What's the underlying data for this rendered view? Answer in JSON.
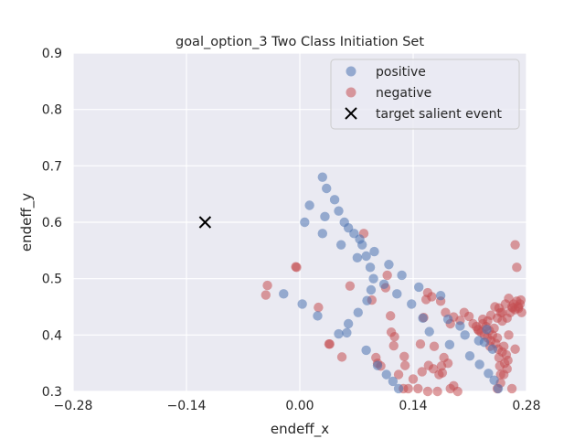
{
  "chart_data": {
    "type": "scatter",
    "title": "goal_option_3 Two Class Initiation Set",
    "xlabel": "endeff_x",
    "ylabel": "endeff_y",
    "xlim": [
      -0.28,
      0.28
    ],
    "ylim": [
      0.3,
      0.9
    ],
    "xticks": [
      -0.28,
      -0.14,
      0.0,
      0.14,
      0.28
    ],
    "xtick_labels": [
      "−0.28",
      "−0.14",
      "0.00",
      "0.14",
      "0.28"
    ],
    "yticks": [
      0.3,
      0.4,
      0.5,
      0.6,
      0.7,
      0.8,
      0.9
    ],
    "ytick_labels": [
      "0.3",
      "0.4",
      "0.5",
      "0.6",
      "0.7",
      "0.8",
      "0.9"
    ],
    "grid": true,
    "legend_position": "top-right",
    "colors": {
      "background": "#eaeaf2",
      "grid": "#ffffff",
      "positive": "#4c72b0",
      "negative": "#c44e52",
      "target": "#000000"
    },
    "series": [
      {
        "name": "positive",
        "marker": "circle",
        "points": [
          [
            -0.02,
            0.473
          ],
          [
            0.003,
            0.455
          ],
          [
            0.022,
            0.434
          ],
          [
            0.006,
            0.6
          ],
          [
            0.012,
            0.63
          ],
          [
            0.028,
            0.68
          ],
          [
            0.033,
            0.66
          ],
          [
            0.043,
            0.64
          ],
          [
            0.048,
            0.62
          ],
          [
            0.031,
            0.61
          ],
          [
            0.055,
            0.6
          ],
          [
            0.06,
            0.59
          ],
          [
            0.067,
            0.58
          ],
          [
            0.051,
            0.56
          ],
          [
            0.028,
            0.58
          ],
          [
            0.074,
            0.57
          ],
          [
            0.077,
            0.56
          ],
          [
            0.082,
            0.54
          ],
          [
            0.071,
            0.537
          ],
          [
            0.092,
            0.548
          ],
          [
            0.087,
            0.52
          ],
          [
            0.091,
            0.5
          ],
          [
            0.088,
            0.48
          ],
          [
            0.083,
            0.461
          ],
          [
            0.104,
            0.49
          ],
          [
            0.11,
            0.525
          ],
          [
            0.12,
            0.473
          ],
          [
            0.126,
            0.506
          ],
          [
            0.147,
            0.485
          ],
          [
            0.138,
            0.455
          ],
          [
            0.152,
            0.43
          ],
          [
            0.16,
            0.406
          ],
          [
            0.072,
            0.44
          ],
          [
            0.06,
            0.42
          ],
          [
            0.058,
            0.404
          ],
          [
            0.048,
            0.402
          ],
          [
            0.082,
            0.373
          ],
          [
            0.096,
            0.346
          ],
          [
            0.107,
            0.33
          ],
          [
            0.115,
            0.318
          ],
          [
            0.122,
            0.305
          ],
          [
            0.174,
            0.47
          ],
          [
            0.183,
            0.428
          ],
          [
            0.185,
            0.383
          ],
          [
            0.198,
            0.416
          ],
          [
            0.204,
            0.4
          ],
          [
            0.21,
            0.363
          ],
          [
            0.222,
            0.348
          ],
          [
            0.228,
            0.387
          ],
          [
            0.233,
            0.332
          ],
          [
            0.24,
            0.32
          ],
          [
            0.238,
            0.375
          ],
          [
            0.245,
            0.305
          ],
          [
            0.221,
            0.39
          ],
          [
            0.231,
            0.41
          ]
        ]
      },
      {
        "name": "negative",
        "marker": "circle",
        "points": [
          [
            -0.04,
            0.488
          ],
          [
            -0.042,
            0.471
          ],
          [
            -0.005,
            0.521
          ],
          [
            -0.004,
            0.52
          ],
          [
            0.023,
            0.449
          ],
          [
            0.036,
            0.384
          ],
          [
            0.037,
            0.384
          ],
          [
            0.052,
            0.361
          ],
          [
            0.062,
            0.487
          ],
          [
            0.079,
            0.58
          ],
          [
            0.089,
            0.462
          ],
          [
            0.094,
            0.36
          ],
          [
            0.1,
            0.345
          ],
          [
            0.096,
            0.35
          ],
          [
            0.108,
            0.506
          ],
          [
            0.106,
            0.484
          ],
          [
            0.112,
            0.434
          ],
          [
            0.113,
            0.405
          ],
          [
            0.117,
            0.397
          ],
          [
            0.116,
            0.381
          ],
          [
            0.129,
            0.362
          ],
          [
            0.13,
            0.346
          ],
          [
            0.122,
            0.33
          ],
          [
            0.128,
            0.305
          ],
          [
            0.134,
            0.305
          ],
          [
            0.14,
            0.322
          ],
          [
            0.146,
            0.305
          ],
          [
            0.151,
            0.335
          ],
          [
            0.149,
            0.384
          ],
          [
            0.153,
            0.431
          ],
          [
            0.156,
            0.463
          ],
          [
            0.158,
            0.475
          ],
          [
            0.163,
            0.468
          ],
          [
            0.166,
            0.38
          ],
          [
            0.159,
            0.346
          ],
          [
            0.165,
            0.34
          ],
          [
            0.172,
            0.33
          ],
          [
            0.175,
            0.345
          ],
          [
            0.178,
            0.36
          ],
          [
            0.176,
            0.333
          ],
          [
            0.183,
            0.35
          ],
          [
            0.186,
            0.305
          ],
          [
            0.19,
            0.31
          ],
          [
            0.195,
            0.3
          ],
          [
            0.17,
            0.3
          ],
          [
            0.158,
            0.3
          ],
          [
            0.174,
            0.46
          ],
          [
            0.18,
            0.44
          ],
          [
            0.186,
            0.42
          ],
          [
            0.19,
            0.432
          ],
          [
            0.198,
            0.426
          ],
          [
            0.203,
            0.44
          ],
          [
            0.209,
            0.433
          ],
          [
            0.214,
            0.42
          ],
          [
            0.218,
            0.415
          ],
          [
            0.22,
            0.41
          ],
          [
            0.224,
            0.405
          ],
          [
            0.226,
            0.42
          ],
          [
            0.228,
            0.4
          ],
          [
            0.23,
            0.415
          ],
          [
            0.232,
            0.395
          ],
          [
            0.234,
            0.408
          ],
          [
            0.236,
            0.39
          ],
          [
            0.238,
            0.4
          ],
          [
            0.24,
            0.412
          ],
          [
            0.242,
            0.385
          ],
          [
            0.244,
            0.395
          ],
          [
            0.245,
            0.375
          ],
          [
            0.246,
            0.36
          ],
          [
            0.247,
            0.345
          ],
          [
            0.248,
            0.33
          ],
          [
            0.25,
            0.37
          ],
          [
            0.252,
            0.38
          ],
          [
            0.253,
            0.35
          ],
          [
            0.255,
            0.365
          ],
          [
            0.256,
            0.34
          ],
          [
            0.257,
            0.355
          ],
          [
            0.258,
            0.4
          ],
          [
            0.26,
            0.44
          ],
          [
            0.262,
            0.45
          ],
          [
            0.264,
            0.455
          ],
          [
            0.266,
            0.445
          ],
          [
            0.268,
            0.46
          ],
          [
            0.27,
            0.45
          ],
          [
            0.272,
            0.455
          ],
          [
            0.273,
            0.462
          ],
          [
            0.254,
            0.455
          ],
          [
            0.25,
            0.44
          ],
          [
            0.246,
            0.448
          ],
          [
            0.248,
            0.44
          ],
          [
            0.266,
            0.56
          ],
          [
            0.268,
            0.52
          ],
          [
            0.258,
            0.465
          ],
          [
            0.244,
            0.43
          ],
          [
            0.236,
            0.435
          ],
          [
            0.232,
            0.425
          ],
          [
            0.226,
            0.428
          ],
          [
            0.221,
            0.408
          ],
          [
            0.252,
            0.33
          ],
          [
            0.248,
            0.315
          ],
          [
            0.244,
            0.305
          ],
          [
            0.262,
            0.305
          ],
          [
            0.266,
            0.375
          ],
          [
            0.256,
            0.43
          ],
          [
            0.241,
            0.45
          ],
          [
            0.274,
            0.44
          ],
          [
            0.27,
            0.447
          ],
          [
            0.263,
            0.448
          ],
          [
            0.25,
            0.425
          ],
          [
            0.235,
            0.38
          ]
        ]
      },
      {
        "name": "target salient event",
        "marker": "x",
        "points": [
          [
            -0.117,
            0.6
          ]
        ]
      }
    ]
  }
}
